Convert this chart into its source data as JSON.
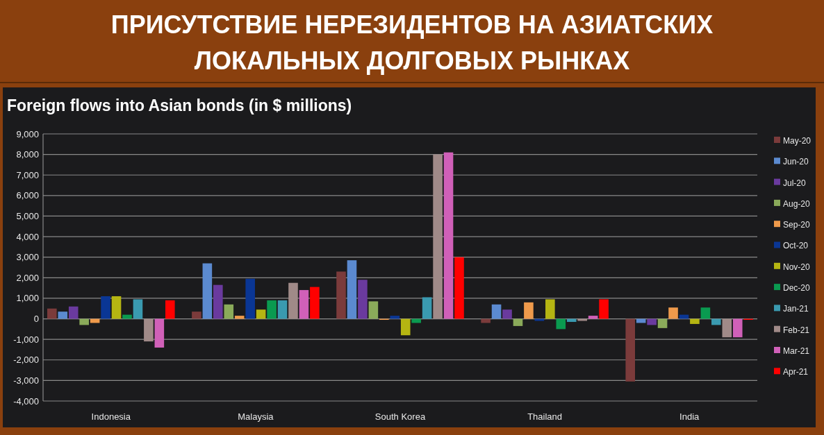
{
  "chart_data": {
    "type": "bar",
    "title": "ПРИСУТСТВИЕ НЕРЕЗИДЕНТОВ НА АЗИАТСКИХ ЛОКАЛЬНЫХ ДОЛГОВЫХ РЫНКАХ",
    "subtitle": "Foreign flows into Asian bonds (in $ millions)",
    "categories": [
      "Indonesia",
      "Malaysia",
      "South Korea",
      "Thailand",
      "India"
    ],
    "series": [
      {
        "name": "May-20",
        "color": "#7b3b3b",
        "values": [
          500,
          350,
          2300,
          -200,
          -3050
        ]
      },
      {
        "name": "Jun-20",
        "color": "#5b8ad0",
        "values": [
          350,
          2700,
          2850,
          700,
          -200
        ]
      },
      {
        "name": "Jul-20",
        "color": "#6a3a9e",
        "values": [
          600,
          1650,
          1900,
          450,
          -300
        ]
      },
      {
        "name": "Aug-20",
        "color": "#8aaa5a",
        "values": [
          -300,
          700,
          850,
          -350,
          -450
        ]
      },
      {
        "name": "Sep-20",
        "color": "#ef9a4b",
        "values": [
          -200,
          150,
          -50,
          800,
          550
        ]
      },
      {
        "name": "Oct-20",
        "color": "#0a3694",
        "values": [
          1100,
          1950,
          150,
          -100,
          200
        ]
      },
      {
        "name": "Nov-20",
        "color": "#b5b512",
        "values": [
          1100,
          450,
          -800,
          950,
          -250
        ]
      },
      {
        "name": "Dec-20",
        "color": "#0a9a50",
        "values": [
          200,
          900,
          -200,
          -500,
          550
        ]
      },
      {
        "name": "Jan-21",
        "color": "#3a9ab0",
        "values": [
          950,
          900,
          1050,
          -150,
          -300
        ]
      },
      {
        "name": "Feb-21",
        "color": "#a08a88",
        "values": [
          -1100,
          1750,
          8000,
          -100,
          -900
        ]
      },
      {
        "name": "Mar-21",
        "color": "#d060b8",
        "values": [
          -1400,
          1400,
          8100,
          150,
          -900
        ]
      },
      {
        "name": "Apr-21",
        "color": "#ff0000",
        "values": [
          900,
          1550,
          3000,
          950,
          -50
        ]
      }
    ],
    "ylim": [
      -4000,
      9000
    ],
    "yticks": [
      {
        "value": -4000,
        "label": "-4,000"
      },
      {
        "value": -3000,
        "label": "-3,000"
      },
      {
        "value": -2000,
        "label": "-2,000"
      },
      {
        "value": -1000,
        "label": "-1,000"
      },
      0,
      {
        "value": 1000,
        "label": "1,000"
      },
      {
        "value": 2000,
        "label": "2,000"
      },
      {
        "value": 3000,
        "label": "3,000"
      },
      {
        "value": 4000,
        "label": "4,000"
      },
      {
        "value": 5000,
        "label": "5,000"
      },
      {
        "value": 6000,
        "label": "6,000"
      },
      {
        "value": 7000,
        "label": "7,000"
      },
      {
        "value": 8000,
        "label": "8,000"
      },
      {
        "value": 9000,
        "label": "9,000"
      }
    ],
    "grid": "y",
    "legend": "right"
  }
}
